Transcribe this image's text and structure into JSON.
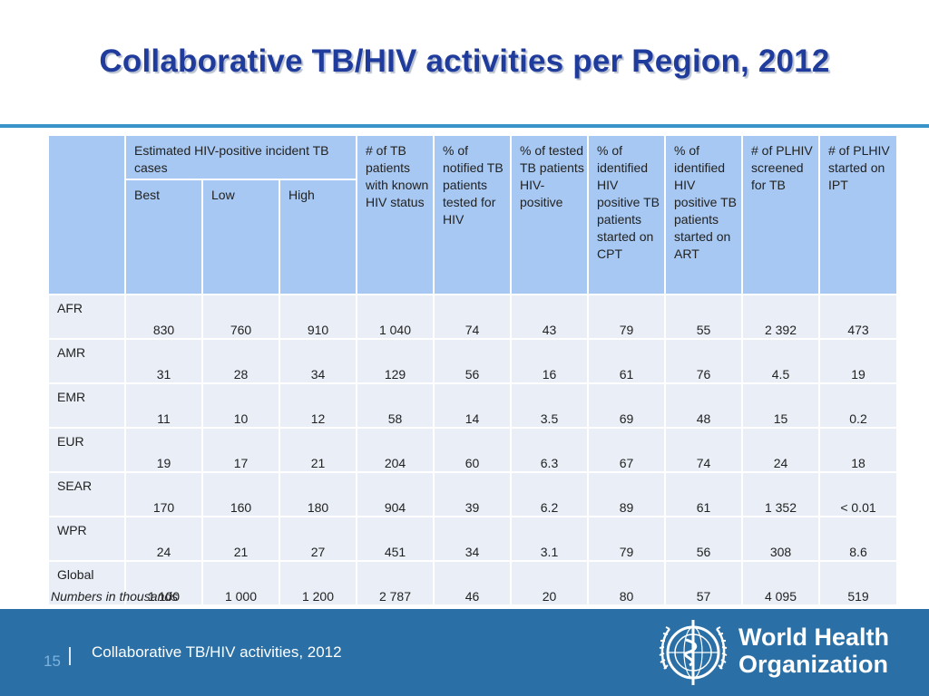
{
  "title": "Collaborative TB/HIV activities per Region, 2012",
  "table": {
    "group_header": "Estimated HIV-positive incident TB cases",
    "sub_headers": [
      "Best",
      "Low",
      "High"
    ],
    "column_headers": [
      "# of TB patients with known HIV status",
      "% of notified TB patients tested for HIV",
      "% of tested TB patients HIV-positive",
      "% of identified HIV positive TB patients started on CPT",
      "% of identified HIV positive TB patients started on ART",
      "# of PLHIV screened for TB",
      "# of PLHIV started on IPT"
    ],
    "rows": [
      {
        "region": "AFR",
        "values": [
          "830",
          "760",
          "910",
          "1 040",
          "74",
          "43",
          "79",
          "55",
          "2 392",
          "473"
        ]
      },
      {
        "region": "AMR",
        "values": [
          "31",
          "28",
          "34",
          "129",
          "56",
          "16",
          "61",
          "76",
          "4.5",
          "19"
        ]
      },
      {
        "region": "EMR",
        "values": [
          "11",
          "10",
          "12",
          "58",
          "14",
          "3.5",
          "69",
          "48",
          "15",
          "0.2"
        ]
      },
      {
        "region": "EUR",
        "values": [
          "19",
          "17",
          "21",
          "204",
          "60",
          "6.3",
          "67",
          "74",
          "24",
          "18"
        ]
      },
      {
        "region": "SEAR",
        "values": [
          "170",
          "160",
          "180",
          "904",
          "39",
          "6.2",
          "89",
          "61",
          "1 352",
          "< 0.01"
        ]
      },
      {
        "region": "WPR",
        "values": [
          "24",
          "21",
          "27",
          "451",
          "34",
          "3.1",
          "79",
          "56",
          "308",
          "8.6"
        ]
      },
      {
        "region": "Global",
        "values": [
          "1 100",
          "1 000",
          "1 200",
          "2 787",
          "46",
          "20",
          "80",
          "57",
          "4 095",
          "519"
        ]
      }
    ]
  },
  "note": "Numbers in thousands",
  "footer": {
    "page_number": "15",
    "text": "Collaborative TB/HIV activities, 2012",
    "logo_line1": "World Health",
    "logo_line2": "Organization"
  },
  "colors": {
    "title": "#1f3c9c",
    "header_fill": "#a7c8f2",
    "row_fill": "#e9eef7",
    "footer_fill": "#2a6fa5",
    "rule": "#3a93c9"
  },
  "icons": [
    "who-emblem-icon"
  ]
}
